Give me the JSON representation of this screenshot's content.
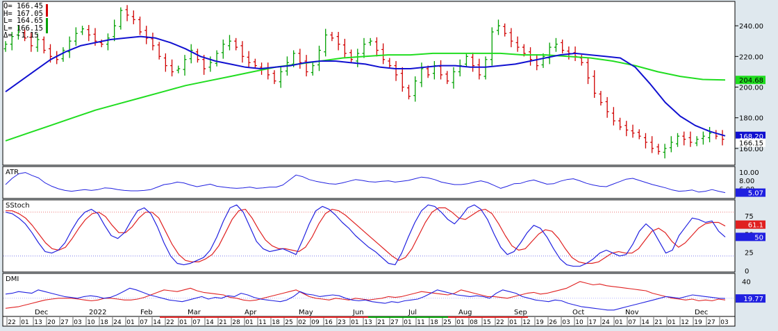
{
  "ohlc_box": {
    "open": "O= 166.45",
    "high": "H= 167.05",
    "low": "L= 164.65",
    "last": "L= 166.15",
    "change": "Δ= -1.15"
  },
  "panels": {
    "atr_label": "ATR",
    "sstoch_label": "SStoch",
    "dmi_label": "DMI"
  },
  "colors": {
    "background": "#ffffff",
    "frame": "#dfe8ee",
    "up_bar": "#00a000",
    "down_bar": "#d00000",
    "ma_fast": "#1010d0",
    "ma_slow": "#20dd20",
    "line_blue": "#2020e0",
    "line_red": "#e02020"
  },
  "chart_data": [
    {
      "type": "candlestick",
      "panel": "price",
      "ylim": [
        150,
        255
      ],
      "yticks": [
        "240.00",
        "220.00",
        "200.00",
        "180.00",
        "160.00"
      ],
      "y_tick_values": [
        240,
        220,
        200,
        180,
        160
      ],
      "last_price_label": "166.15",
      "ma_fast_label": "168.20",
      "ma_slow_label": "204.68",
      "series": [
        {
          "name": "price",
          "values": [
            228,
            233,
            236,
            232,
            227,
            231,
            224,
            220,
            218,
            224,
            230,
            235,
            238,
            234,
            230,
            228,
            232,
            240,
            250,
            247,
            244,
            236,
            232,
            227,
            220,
            214,
            210,
            212,
            218,
            224,
            218,
            212,
            216,
            222,
            228,
            230,
            226,
            220,
            216,
            214,
            212,
            208,
            204,
            210,
            216,
            222,
            216,
            210,
            214,
            224,
            234,
            232,
            228,
            222,
            218,
            222,
            228,
            230,
            224,
            218,
            214,
            208,
            200,
            194,
            204,
            212,
            208,
            214,
            208,
            204,
            210,
            214,
            220,
            214,
            208,
            218,
            236,
            240,
            235,
            230,
            226,
            222,
            218,
            214,
            220,
            226,
            228,
            224,
            222,
            220,
            216,
            206,
            196,
            190,
            184,
            178,
            174,
            172,
            170,
            168,
            164,
            160,
            158,
            160,
            164,
            168,
            166,
            164,
            166,
            168,
            170,
            168,
            166
          ]
        },
        {
          "name": "ma_fast",
          "values": [
            197,
            204,
            211,
            218,
            223,
            227,
            229,
            231,
            232,
            233,
            232,
            229,
            225,
            220,
            217,
            215,
            213,
            212,
            213,
            214,
            216,
            217,
            217,
            216,
            215,
            213,
            212,
            212,
            213,
            214,
            214,
            213,
            213,
            214,
            215,
            217,
            219,
            221,
            222,
            221,
            220,
            219,
            213,
            202,
            190,
            181,
            175,
            171,
            168.2
          ]
        },
        {
          "name": "ma_slow",
          "values": [
            165,
            170,
            175,
            180,
            185,
            189,
            193,
            197,
            201,
            204,
            207,
            210,
            213,
            215,
            217,
            219,
            220,
            221,
            221,
            222,
            222,
            222,
            222,
            221,
            221,
            220,
            219,
            217,
            214,
            210,
            207,
            205,
            204.68
          ]
        }
      ]
    },
    {
      "type": "line",
      "panel": "ATR",
      "ylim": [
        4,
        11
      ],
      "yticks": [
        "10.00",
        "8.00",
        "6.00"
      ],
      "y_tick_values": [
        10,
        8,
        6
      ],
      "last_value_label": "5.07",
      "series": [
        {
          "name": "ATR",
          "values": [
            7,
            8.5,
            9.6,
            9.9,
            9.2,
            8.6,
            7.4,
            6.6,
            6,
            5.6,
            5.4,
            5.6,
            5.8,
            5.6,
            5.8,
            6.2,
            6.1,
            5.8,
            5.6,
            5.5,
            5.5,
            5.6,
            5.8,
            6.4,
            7,
            7.2,
            7.6,
            7.4,
            6.9,
            6.5,
            6.8,
            7.1,
            6.6,
            6.4,
            6.2,
            6.1,
            6.2,
            6.4,
            6.1,
            6.2,
            6.4,
            6.4,
            6.9,
            8.1,
            9.3,
            8.9,
            8.2,
            7.8,
            7.5,
            7.2,
            7.1,
            7.4,
            7.8,
            8.2,
            8,
            7.7,
            7.6,
            7.8,
            7.9,
            7.6,
            7.8,
            8,
            8.4,
            8.8,
            8.6,
            8.2,
            7.6,
            7.3,
            7,
            7,
            7.2,
            7.6,
            7.9,
            7.5,
            6.8,
            6.1,
            6.6,
            7.2,
            7.3,
            7.8,
            8.1,
            7.6,
            7.1,
            7.2,
            7.8,
            8.2,
            8.4,
            7.9,
            7.3,
            6.9,
            6.6,
            6.5,
            7.1,
            7.7,
            8.3,
            8.5,
            8,
            7.5,
            7,
            6.6,
            6.2,
            5.7,
            5.4,
            5.5,
            5.7,
            5.2,
            5.4,
            5.8,
            5.4,
            5.07
          ]
        }
      ]
    },
    {
      "type": "line",
      "panel": "SStoch",
      "ylim": [
        0,
        95
      ],
      "yticks": [
        "75",
        "50",
        "25",
        "0"
      ],
      "y_tick_values": [
        75,
        50,
        25,
        0
      ],
      "reference_lines": [
        80,
        20
      ],
      "last_value_labels": [
        "61.1",
        "50"
      ],
      "series": [
        {
          "name": "%K",
          "values": [
            80,
            78,
            72,
            64,
            52,
            38,
            26,
            24,
            28,
            38,
            55,
            70,
            80,
            84,
            78,
            62,
            48,
            44,
            52,
            68,
            82,
            86,
            78,
            60,
            38,
            20,
            10,
            8,
            10,
            14,
            18,
            28,
            46,
            68,
            86,
            90,
            80,
            60,
            40,
            30,
            26,
            28,
            30,
            26,
            22,
            42,
            64,
            82,
            88,
            84,
            76,
            66,
            58,
            48,
            40,
            32,
            26,
            18,
            10,
            8,
            24,
            46,
            66,
            82,
            90,
            88,
            80,
            70,
            64,
            74,
            86,
            90,
            84,
            70,
            50,
            32,
            22,
            26,
            38,
            52,
            62,
            58,
            46,
            30,
            16,
            8,
            6,
            6,
            10,
            16,
            24,
            28,
            24,
            20,
            22,
            36,
            54,
            64,
            56,
            40,
            24,
            28,
            48,
            60,
            72,
            70,
            66,
            68,
            54,
            46
          ]
        },
        {
          "name": "%D",
          "values": [
            82,
            82,
            78,
            72,
            62,
            50,
            38,
            30,
            28,
            32,
            44,
            58,
            70,
            78,
            80,
            74,
            62,
            52,
            52,
            60,
            72,
            80,
            80,
            72,
            54,
            36,
            22,
            14,
            12,
            12,
            16,
            22,
            34,
            52,
            70,
            82,
            84,
            72,
            56,
            42,
            34,
            30,
            30,
            28,
            26,
            32,
            46,
            64,
            78,
            84,
            82,
            76,
            68,
            60,
            52,
            44,
            36,
            28,
            20,
            14,
            18,
            30,
            48,
            66,
            80,
            86,
            86,
            80,
            72,
            70,
            76,
            82,
            84,
            78,
            64,
            48,
            34,
            28,
            30,
            40,
            50,
            56,
            54,
            44,
            30,
            18,
            12,
            10,
            10,
            12,
            18,
            24,
            26,
            24,
            24,
            30,
            42,
            54,
            58,
            52,
            40,
            32,
            38,
            48,
            58,
            64,
            66,
            66,
            61.1
          ]
        }
      ]
    },
    {
      "type": "line",
      "panel": "DMI",
      "ylim": [
        0,
        48
      ],
      "yticks": [
        "40"
      ],
      "y_tick_values": [
        40
      ],
      "reference_lines": [
        20
      ],
      "last_value_label": "19.77",
      "series": [
        {
          "name": "+DI",
          "values": [
            25,
            26,
            28,
            27,
            26,
            30,
            28,
            26,
            24,
            22,
            21,
            20,
            22,
            23,
            22,
            20,
            21,
            24,
            28,
            32,
            30,
            27,
            24,
            22,
            20,
            18,
            17,
            16,
            18,
            20,
            22,
            19,
            21,
            20,
            23,
            22,
            26,
            24,
            21,
            19,
            18,
            17,
            16,
            18,
            22,
            28,
            25,
            24,
            22,
            23,
            24,
            23,
            20,
            18,
            17,
            18,
            16,
            15,
            14,
            16,
            15,
            17,
            18,
            19,
            22,
            26,
            30,
            28,
            26,
            24,
            23,
            22,
            23,
            22,
            20,
            26,
            30,
            28,
            26,
            22,
            20,
            18,
            17,
            16,
            18,
            17,
            14,
            12,
            10,
            9,
            8,
            7,
            6,
            6,
            8,
            10,
            12,
            14,
            16,
            18,
            20,
            22,
            21,
            20,
            22,
            24,
            23,
            22,
            21,
            20,
            19.77
          ]
        },
        {
          "name": "-DI",
          "values": [
            8,
            9,
            10,
            12,
            14,
            16,
            18,
            19,
            20,
            20,
            20,
            19,
            18,
            17,
            18,
            20,
            20,
            19,
            18,
            18,
            19,
            21,
            24,
            27,
            30,
            29,
            28,
            30,
            32,
            29,
            27,
            26,
            25,
            24,
            21,
            20,
            18,
            17,
            18,
            20,
            22,
            24,
            26,
            28,
            30,
            26,
            22,
            20,
            19,
            18,
            20,
            19,
            18,
            20,
            19,
            18,
            19,
            20,
            22,
            21,
            22,
            24,
            26,
            28,
            27,
            26,
            25,
            24,
            26,
            30,
            28,
            26,
            24,
            22,
            22,
            21,
            20,
            22,
            24,
            26,
            27,
            25,
            26,
            28,
            30,
            32,
            36,
            40,
            38,
            36,
            37,
            35,
            34,
            33,
            32,
            31,
            30,
            29,
            26,
            24,
            22,
            20,
            19,
            18,
            19,
            17,
            18,
            17,
            19,
            18
          ]
        }
      ]
    }
  ],
  "x_axis": {
    "month_labels": [
      "Dec",
      "2022",
      "Feb",
      "Mar",
      "Apr",
      "May",
      "Jun",
      "Jul",
      "Aug",
      "Sep",
      "Oct",
      "Nov",
      "Dec"
    ],
    "day_labels": [
      "22",
      "01",
      "13",
      "20",
      "27",
      "03",
      "10",
      "18",
      "24",
      "01",
      "07",
      "14",
      "22",
      "01",
      "07",
      "14",
      "21",
      "28",
      "01",
      "11",
      "18",
      "25",
      "02",
      "09",
      "16",
      "23",
      "01",
      "13",
      "21",
      "27",
      "01",
      "11",
      "18",
      "25",
      "01",
      "08",
      "15",
      "22",
      "01",
      "12",
      "19",
      "26",
      "03",
      "10",
      "17",
      "24",
      "01",
      "07",
      "14",
      "21",
      "01",
      "12",
      "19",
      "27",
      "03"
    ]
  }
}
